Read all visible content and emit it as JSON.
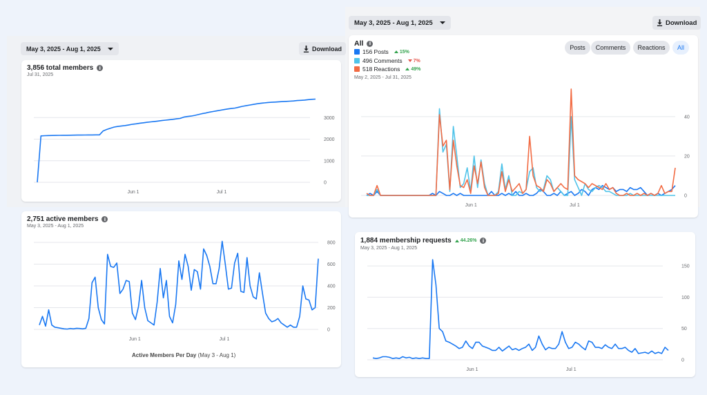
{
  "left_panel": {
    "date_range": "May 3, 2025 - Aug 1, 2025",
    "download_label": "Download"
  },
  "right_panel": {
    "date_range": "May 3, 2025 - Aug 1, 2025",
    "download_label": "Download"
  },
  "total_members": {
    "title": "3,856 total members",
    "subtitle": "Jul 31, 2025",
    "chart_data": {
      "type": "line",
      "x_ticks": [
        "Jun 1",
        "Jul 1"
      ],
      "y_ticks": [
        0,
        1000,
        2000,
        3000
      ],
      "ylim": [
        0,
        4000
      ],
      "color": "#1877f2",
      "series": [
        {
          "values": [
            0,
            2150,
            2160,
            2165,
            2170,
            2172,
            2175,
            2178,
            2180,
            2182,
            2185,
            2188,
            2190,
            2192,
            2195,
            2196,
            2198,
            2200,
            2380,
            2450,
            2510,
            2560,
            2590,
            2610,
            2630,
            2660,
            2690,
            2710,
            2740,
            2760,
            2780,
            2800,
            2820,
            2840,
            2860,
            2880,
            2900,
            2920,
            2940,
            2960,
            3020,
            3050,
            3070,
            3100,
            3140,
            3180,
            3210,
            3250,
            3280,
            3310,
            3340,
            3370,
            3400,
            3420,
            3440,
            3480,
            3520,
            3550,
            3580,
            3610,
            3640,
            3660,
            3680,
            3700,
            3710,
            3720,
            3730,
            3740,
            3750,
            3760,
            3770,
            3790,
            3800,
            3810,
            3830,
            3845,
            3856
          ]
        }
      ]
    }
  },
  "active_members": {
    "title": "2,751 active members",
    "subtitle": "May 3, 2025 - Aug 1, 2025",
    "caption_bold": "Active Members Per Day",
    "caption_rest": "(May 3 - Aug 1)",
    "chart_data": {
      "type": "line",
      "x_ticks": [
        "Jun 1",
        "Jul 1"
      ],
      "y_ticks": [
        0,
        200,
        400,
        600,
        800
      ],
      "ylim": [
        0,
        800
      ],
      "color": "#1877f2",
      "series": [
        {
          "values": [
            40,
            120,
            30,
            180,
            40,
            20,
            15,
            10,
            5,
            3,
            8,
            5,
            10,
            8,
            5,
            10,
            100,
            430,
            480,
            200,
            90,
            50,
            690,
            580,
            570,
            610,
            330,
            370,
            450,
            440,
            150,
            90,
            210,
            450,
            200,
            80,
            60,
            40,
            250,
            560,
            290,
            450,
            120,
            60,
            230,
            630,
            460,
            690,
            580,
            360,
            550,
            530,
            370,
            740,
            680,
            580,
            420,
            420,
            560,
            810,
            600,
            370,
            380,
            610,
            700,
            350,
            340,
            660,
            400,
            300,
            280,
            520,
            330,
            150,
            100,
            70,
            80,
            100,
            60,
            40,
            20,
            40,
            20,
            20,
            120,
            400,
            280,
            270,
            180,
            200,
            650
          ]
        }
      ]
    }
  },
  "engagement": {
    "title": "All",
    "subtitle": "May 2, 2025 - Jul 31, 2025",
    "legend": [
      {
        "label": "156 Posts",
        "color": "#1877f2",
        "change": "15%",
        "direction": "up"
      },
      {
        "label": "496 Comments",
        "color": "#4fc3e9",
        "change": "7%",
        "direction": "down"
      },
      {
        "label": "518 Reactions",
        "color": "#f26b43",
        "change": "49%",
        "direction": "up"
      }
    ],
    "filters": [
      {
        "label": "Posts",
        "active": false
      },
      {
        "label": "Comments",
        "active": false
      },
      {
        "label": "Reactions",
        "active": false
      },
      {
        "label": "All",
        "active": true
      }
    ],
    "chart_data": {
      "type": "line",
      "x_ticks": [
        "Jun 1",
        "Jul 1"
      ],
      "y_ticks": [
        0,
        20,
        40
      ],
      "ylim": [
        0,
        55
      ],
      "categories_count": 90,
      "series": [
        {
          "name": "Posts",
          "color": "#1877f2",
          "values": [
            0,
            1,
            0,
            2,
            0,
            0,
            0,
            0,
            0,
            0,
            0,
            0,
            0,
            0,
            0,
            0,
            0,
            0,
            0,
            1,
            0,
            2,
            1,
            0,
            0,
            1,
            0,
            1,
            0,
            0,
            0,
            0,
            0,
            0,
            0,
            0,
            2,
            0,
            0,
            1,
            0,
            1,
            0,
            2,
            0,
            0,
            1,
            0,
            0,
            1,
            3,
            2,
            0,
            0,
            1,
            0,
            2,
            0,
            1,
            2,
            0,
            1,
            3,
            2,
            0,
            3,
            4,
            3,
            5,
            4,
            3,
            4,
            2,
            3,
            3,
            2,
            4,
            3,
            3,
            4,
            2,
            0,
            1,
            0,
            1,
            0,
            1,
            2,
            3,
            5
          ]
        },
        {
          "name": "Comments",
          "color": "#4fc3e9",
          "values": [
            0,
            0,
            0,
            3,
            0,
            0,
            0,
            0,
            0,
            0,
            0,
            0,
            0,
            0,
            0,
            0,
            0,
            0,
            0,
            0,
            0,
            44,
            22,
            26,
            2,
            35,
            20,
            4,
            6,
            14,
            2,
            20,
            4,
            18,
            6,
            0,
            0,
            0,
            2,
            16,
            3,
            10,
            0,
            0,
            2,
            1,
            3,
            12,
            14,
            4,
            2,
            3,
            10,
            8,
            2,
            4,
            2,
            0,
            0,
            40,
            8,
            4,
            0,
            6,
            3,
            2,
            4,
            5,
            4,
            2,
            2,
            1,
            0,
            0,
            0,
            0,
            1,
            0,
            0,
            0,
            0,
            0,
            0,
            0,
            0,
            0,
            0,
            0,
            0,
            0
          ]
        },
        {
          "name": "Reactions",
          "color": "#f26b43",
          "values": [
            1,
            0,
            0,
            5,
            0,
            0,
            0,
            0,
            0,
            0,
            0,
            0,
            0,
            0,
            0,
            0,
            0,
            0,
            0,
            0,
            0,
            41,
            25,
            28,
            3,
            28,
            15,
            5,
            4,
            8,
            1,
            15,
            6,
            17,
            4,
            0,
            0,
            0,
            1,
            12,
            2,
            8,
            2,
            4,
            6,
            1,
            3,
            30,
            10,
            5,
            4,
            2,
            8,
            6,
            2,
            4,
            6,
            4,
            3,
            54,
            10,
            8,
            7,
            6,
            4,
            6,
            5,
            4,
            3,
            6,
            3,
            4,
            1,
            0,
            0,
            1,
            0,
            0,
            1,
            0,
            1,
            0,
            1,
            0,
            1,
            5,
            1,
            2,
            2,
            14
          ]
        }
      ]
    }
  },
  "membership_requests": {
    "title": "1,884 membership requests",
    "change": "44.26%",
    "subtitle": "May 3, 2025 - Aug 1, 2025",
    "chart_data": {
      "type": "line",
      "x_ticks": [
        "Jun 1",
        "Jul 1"
      ],
      "y_ticks": [
        0,
        50,
        100,
        150
      ],
      "ylim": [
        0,
        160
      ],
      "color": "#1877f2",
      "series": [
        {
          "values": [
            3,
            2,
            3,
            5,
            5,
            4,
            2,
            3,
            2,
            5,
            3,
            4,
            2,
            3,
            2,
            3,
            2,
            2,
            160,
            120,
            50,
            45,
            30,
            28,
            25,
            22,
            18,
            20,
            30,
            22,
            18,
            28,
            28,
            22,
            20,
            18,
            15,
            15,
            20,
            14,
            18,
            22,
            16,
            18,
            15,
            18,
            20,
            25,
            15,
            20,
            38,
            25,
            16,
            20,
            18,
            18,
            25,
            45,
            28,
            18,
            20,
            28,
            25,
            20,
            16,
            30,
            28,
            20,
            20,
            18,
            24,
            20,
            18,
            25,
            18,
            18,
            20,
            15,
            12,
            18,
            10,
            11,
            12,
            10,
            14,
            10,
            12,
            10,
            20,
            15
          ]
        }
      ]
    }
  }
}
